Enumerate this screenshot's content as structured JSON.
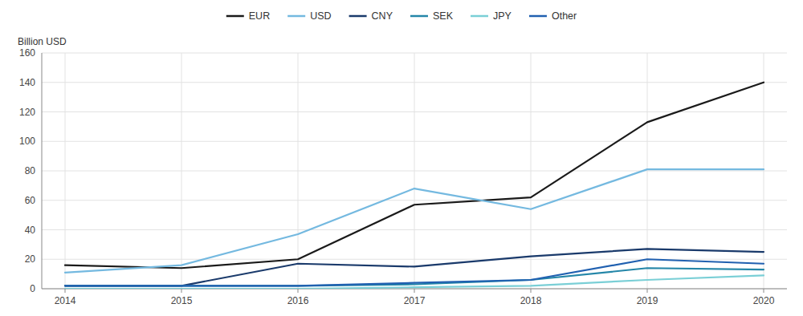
{
  "chart_data": {
    "type": "line",
    "ylabel": "Billion USD",
    "x": [
      2014,
      2015,
      2016,
      2017,
      2018,
      2019,
      2020
    ],
    "series": [
      {
        "name": "EUR",
        "color": "#1a1a1a",
        "values": [
          16,
          14,
          20,
          57,
          62,
          113,
          140
        ]
      },
      {
        "name": "USD",
        "color": "#74b9e0",
        "values": [
          11,
          16,
          37,
          68,
          54,
          81,
          81
        ]
      },
      {
        "name": "CNY",
        "color": "#1a3a6b",
        "values": [
          2,
          2,
          17,
          15,
          22,
          27,
          25
        ]
      },
      {
        "name": "SEK",
        "color": "#2486a8",
        "values": [
          2,
          2,
          2,
          3,
          6,
          14,
          13
        ]
      },
      {
        "name": "JPY",
        "color": "#7acfd6",
        "values": [
          0,
          0,
          0,
          1,
          2,
          6,
          9
        ]
      },
      {
        "name": "Other",
        "color": "#2060b0",
        "values": [
          2,
          2,
          2,
          4,
          6,
          20,
          17
        ]
      }
    ],
    "xlim": [
      2013.8,
      2020.2
    ],
    "xticks": [
      2014,
      2015,
      2016,
      2017,
      2018,
      2019,
      2020
    ],
    "ylim": [
      0,
      160
    ],
    "yticks": [
      0,
      20,
      40,
      60,
      80,
      100,
      120,
      140,
      160
    ],
    "grid": true,
    "legend": "top"
  }
}
